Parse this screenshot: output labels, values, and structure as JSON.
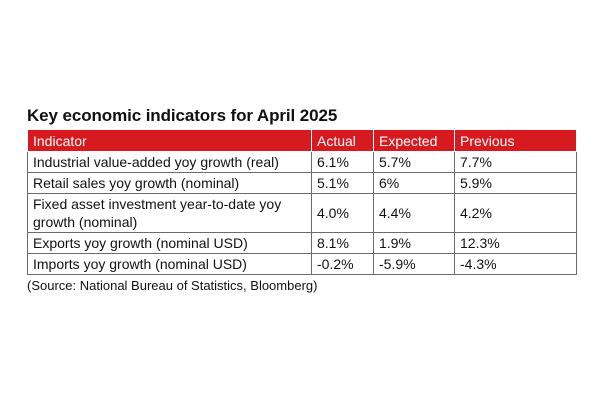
{
  "title": "Key economic indicators for April 2025",
  "table": {
    "headers": [
      "Indicator",
      "Actual",
      "Expected",
      "Previous"
    ],
    "rows": [
      {
        "indicator": "Industrial value-added yoy growth (real)",
        "actual": "6.1%",
        "expected": "5.7%",
        "previous": "7.7%"
      },
      {
        "indicator": "Retail sales yoy growth (nominal)",
        "actual": "5.1%",
        "expected": "6%",
        "previous": "5.9%"
      },
      {
        "indicator": "Fixed asset investment year-to-date yoy growth (nominal)",
        "actual": "4.0%",
        "expected": "4.4%",
        "previous": "4.2%"
      },
      {
        "indicator": "Exports yoy growth (nominal USD)",
        "actual": "8.1%",
        "expected": "1.9%",
        "previous": "12.3%"
      },
      {
        "indicator": "Imports yoy growth (nominal USD)",
        "actual": "-0.2%",
        "expected": "-5.9%",
        "previous": "-4.3%"
      }
    ]
  },
  "source": "(Source: National Bureau of Statistics, Bloomberg)",
  "colors": {
    "header_bg": "#d71920",
    "header_text": "#ffffff",
    "border": "#6b6b6b"
  }
}
